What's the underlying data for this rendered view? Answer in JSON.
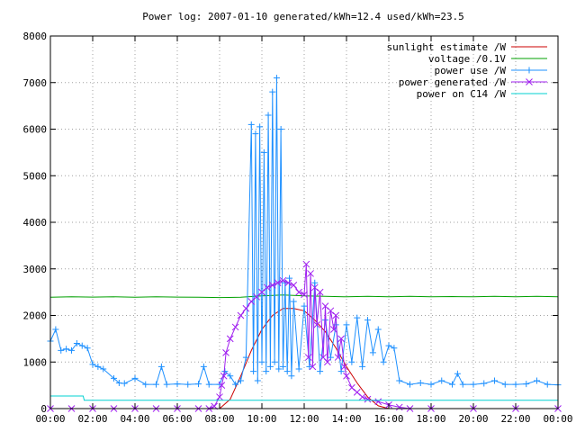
{
  "chart_data": {
    "type": "line",
    "title": "Power log: 2007-01-10 generated/kWh=12.4 used/kWh=23.5",
    "xlabel": "",
    "ylabel": "",
    "x_unit": "hours",
    "xlim": [
      0,
      24
    ],
    "ylim": [
      0,
      8000
    ],
    "grid": true,
    "legend_position": "top-right",
    "x_ticks": [
      {
        "v": 0,
        "label": "00:00"
      },
      {
        "v": 2,
        "label": "02:00"
      },
      {
        "v": 4,
        "label": "04:00"
      },
      {
        "v": 6,
        "label": "06:00"
      },
      {
        "v": 8,
        "label": "08:00"
      },
      {
        "v": 10,
        "label": "10:00"
      },
      {
        "v": 12,
        "label": "12:00"
      },
      {
        "v": 14,
        "label": "14:00"
      },
      {
        "v": 16,
        "label": "16:00"
      },
      {
        "v": 18,
        "label": "18:00"
      },
      {
        "v": 20,
        "label": "20:00"
      },
      {
        "v": 22,
        "label": "22:00"
      },
      {
        "v": 24,
        "label": "00:00"
      }
    ],
    "y_ticks": [
      {
        "v": 0,
        "label": "0"
      },
      {
        "v": 1000,
        "label": "1000"
      },
      {
        "v": 2000,
        "label": "2000"
      },
      {
        "v": 3000,
        "label": "3000"
      },
      {
        "v": 4000,
        "label": "4000"
      },
      {
        "v": 5000,
        "label": "5000"
      },
      {
        "v": 6000,
        "label": "6000"
      },
      {
        "v": 7000,
        "label": "7000"
      },
      {
        "v": 8000,
        "label": "8000"
      }
    ],
    "series": [
      {
        "name": "sunlight estimate /W",
        "color": "#cc0000",
        "marker": "none",
        "x": [
          0,
          8.0,
          8.5,
          9.0,
          9.5,
          10.0,
          10.5,
          11.0,
          11.5,
          12.0,
          12.5,
          13.0,
          13.5,
          14.0,
          14.5,
          15.0,
          15.5,
          16.0,
          24
        ],
        "y": [
          0,
          0,
          200,
          700,
          1250,
          1700,
          2000,
          2150,
          2150,
          2100,
          1900,
          1650,
          1300,
          900,
          550,
          250,
          60,
          0,
          0
        ]
      },
      {
        "name": "voltage /0.1V",
        "color": "#00a000",
        "marker": "none",
        "x": [
          0,
          1,
          2,
          3,
          4,
          5,
          6,
          7,
          8,
          9,
          10,
          11,
          12,
          13,
          14,
          15,
          16,
          17,
          18,
          19,
          20,
          21,
          22,
          23,
          24
        ],
        "y": [
          2390,
          2400,
          2395,
          2400,
          2390,
          2400,
          2395,
          2390,
          2385,
          2390,
          2420,
          2440,
          2420,
          2410,
          2400,
          2410,
          2400,
          2410,
          2400,
          2405,
          2400,
          2410,
          2400,
          2410,
          2400
        ]
      },
      {
        "name": "power use /W",
        "color": "#1e90ff",
        "marker": "plus",
        "x": [
          0.0,
          0.25,
          0.5,
          0.75,
          1.0,
          1.25,
          1.5,
          1.75,
          2.0,
          2.25,
          2.5,
          3.0,
          3.25,
          3.5,
          4.0,
          4.5,
          5.0,
          5.25,
          5.5,
          6.0,
          6.5,
          7.0,
          7.25,
          7.5,
          8.0,
          8.25,
          8.5,
          8.75,
          9.0,
          9.25,
          9.5,
          9.6,
          9.7,
          9.8,
          9.9,
          10.0,
          10.1,
          10.2,
          10.3,
          10.4,
          10.5,
          10.6,
          10.7,
          10.8,
          10.9,
          11.0,
          11.1,
          11.2,
          11.3,
          11.4,
          11.5,
          11.75,
          12.0,
          12.25,
          12.5,
          12.75,
          13.0,
          13.25,
          13.5,
          13.75,
          14.0,
          14.25,
          14.5,
          14.75,
          15.0,
          15.25,
          15.5,
          15.75,
          16.0,
          16.25,
          16.5,
          17.0,
          17.5,
          18.0,
          18.5,
          19.0,
          19.25,
          19.5,
          20.0,
          20.5,
          21.0,
          21.5,
          22.0,
          22.5,
          23.0,
          23.5,
          24.0
        ],
        "y": [
          1450,
          1700,
          1250,
          1280,
          1250,
          1400,
          1350,
          1300,
          950,
          900,
          850,
          650,
          550,
          540,
          650,
          520,
          520,
          900,
          520,
          530,
          520,
          530,
          900,
          520,
          520,
          800,
          700,
          520,
          600,
          1100,
          6100,
          800,
          5900,
          600,
          6050,
          1000,
          5500,
          800,
          6300,
          900,
          6800,
          1000,
          7100,
          850,
          6000,
          900,
          2700,
          800,
          2800,
          700,
          2300,
          850,
          2200,
          900,
          2700,
          800,
          1900,
          1100,
          1800,
          800,
          1800,
          1000,
          1950,
          900,
          1900,
          1200,
          1700,
          1000,
          1350,
          1300,
          600,
          520,
          550,
          520,
          600,
          520,
          750,
          520,
          520,
          540,
          600,
          520,
          520,
          530,
          600,
          520,
          510
        ]
      },
      {
        "name": "power generated /W",
        "color": "#a020f0",
        "marker": "cross",
        "x": [
          0,
          1,
          2,
          3,
          4,
          5,
          6,
          7,
          7.5,
          7.75,
          8.0,
          8.1,
          8.2,
          8.3,
          8.5,
          8.75,
          9.0,
          9.25,
          9.5,
          9.75,
          10.0,
          10.25,
          10.5,
          10.75,
          11.0,
          11.25,
          11.5,
          11.75,
          12.0,
          12.1,
          12.2,
          12.3,
          12.4,
          12.5,
          12.6,
          12.75,
          12.9,
          13.0,
          13.1,
          13.25,
          13.4,
          13.5,
          13.6,
          13.75,
          13.9,
          14.0,
          14.25,
          14.5,
          14.75,
          15.0,
          15.5,
          16.0,
          16.5,
          17.0,
          18,
          20,
          22,
          24
        ],
        "y": [
          0,
          0,
          0,
          0,
          0,
          0,
          0,
          0,
          0,
          50,
          250,
          500,
          700,
          1200,
          1500,
          1750,
          2000,
          2150,
          2300,
          2400,
          2500,
          2600,
          2650,
          2700,
          2750,
          2700,
          2650,
          2500,
          2450,
          3100,
          1100,
          2900,
          900,
          2600,
          1800,
          2500,
          1100,
          2200,
          1000,
          2100,
          1700,
          2000,
          1100,
          1500,
          900,
          700,
          450,
          350,
          250,
          200,
          150,
          80,
          30,
          0,
          0,
          0,
          0,
          0
        ]
      },
      {
        "name": "power on C14 /W",
        "color": "#00d0d0",
        "marker": "none",
        "x": [
          0,
          1.55,
          1.6,
          24
        ],
        "y": [
          270,
          270,
          180,
          180
        ]
      }
    ]
  }
}
